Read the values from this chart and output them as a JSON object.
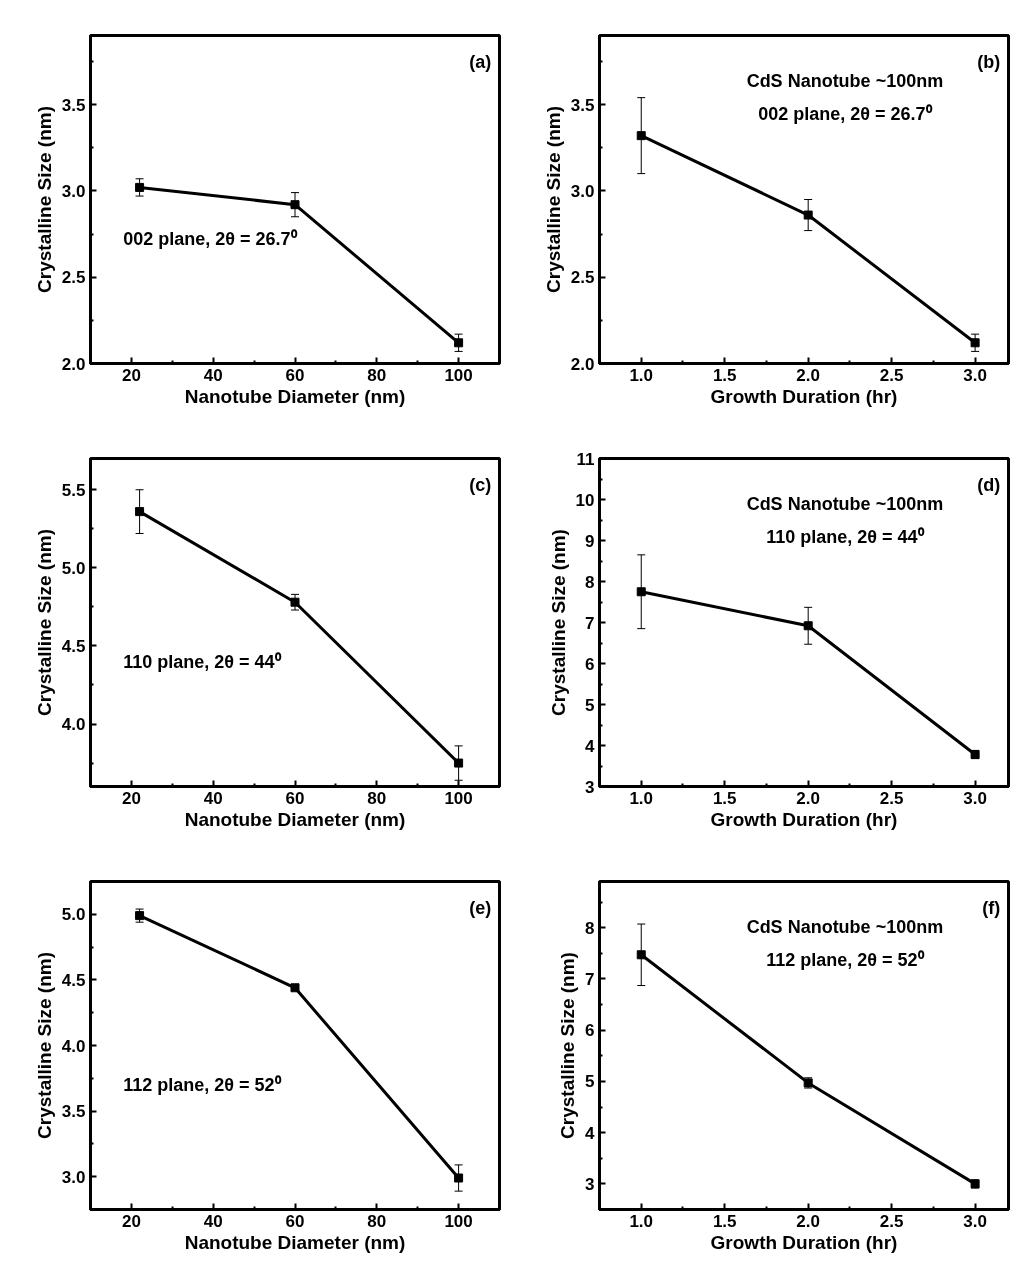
{
  "chart_data": [
    {
      "type": "line",
      "xlabel": "Nanotube Diameter (nm)",
      "ylabel": "Crystalline Size (nm)",
      "x": [
        22,
        60,
        100
      ],
      "xlim": [
        10,
        110
      ],
      "xticks": [
        20,
        40,
        60,
        80,
        100
      ],
      "ylim": [
        2.0,
        3.9
      ],
      "yticks": [
        {
          "value": 2,
          "label": "2.0"
        },
        {
          "value": 2.5,
          "label": "2.5"
        },
        {
          "value": 3,
          "label": "3.0"
        },
        {
          "value": 3.5,
          "label": "3.5"
        }
      ],
      "marker": "square",
      "line_style": "solid",
      "grid": false,
      "annotations": [
        "(a)",
        "002 plane, 2θ = 26.7⁰"
      ],
      "series": [
        {
          "color": "#000000",
          "values": [
            3.02,
            2.92,
            2.12
          ],
          "errors": [
            0.05,
            0.07,
            0.05
          ]
        }
      ]
    },
    {
      "type": "line",
      "xlabel": "Growth Duration (hr)",
      "ylabel": "Crystalline Size (nm)",
      "x": [
        1.0,
        2.0,
        3.0
      ],
      "xlim": [
        0.75,
        3.2
      ],
      "xticks": [
        {
          "value": 1,
          "label": "1.0"
        },
        {
          "value": 1.5,
          "label": "1.5"
        },
        {
          "value": 2,
          "label": "2.0"
        },
        {
          "value": 2.5,
          "label": "2.5"
        },
        {
          "value": 3,
          "label": "3.0"
        }
      ],
      "ylim": [
        2.0,
        3.9
      ],
      "yticks": [
        {
          "value": 2,
          "label": "2.0"
        },
        {
          "value": 2.5,
          "label": "2.5"
        },
        {
          "value": 3,
          "label": "3.0"
        },
        {
          "value": 3.5,
          "label": "3.5"
        }
      ],
      "marker": "square",
      "line_style": "solid",
      "grid": false,
      "annotations": [
        "(b)",
        "CdS Nanotube ~100nm",
        "002 plane, 2θ = 26.7⁰"
      ],
      "series": [
        {
          "color": "#000000",
          "values": [
            3.32,
            2.86,
            2.12
          ],
          "errors": [
            0.22,
            0.09,
            0.05
          ]
        }
      ]
    },
    {
      "type": "line",
      "xlabel": "Nanotube Diameter (nm)",
      "ylabel": "Crystalline Size (nm)",
      "x": [
        22,
        60,
        100
      ],
      "xlim": [
        10,
        110
      ],
      "xticks": [
        20,
        40,
        60,
        80,
        100
      ],
      "ylim": [
        3.6,
        5.7
      ],
      "yticks": [
        {
          "value": 4,
          "label": "4.0"
        },
        {
          "value": 4.5,
          "label": "4.5"
        },
        {
          "value": 5,
          "label": "5.0"
        },
        {
          "value": 5.5,
          "label": "5.5"
        }
      ],
      "marker": "square",
      "line_style": "solid",
      "grid": false,
      "annotations": [
        "(c)",
        "110 plane, 2θ = 44⁰"
      ],
      "series": [
        {
          "color": "#000000",
          "values": [
            5.36,
            4.78,
            3.75
          ],
          "errors": [
            0.14,
            0.05,
            0.11
          ]
        }
      ]
    },
    {
      "type": "line",
      "xlabel": "Growth Duration (hr)",
      "ylabel": "Crystalline Size (nm)",
      "x": [
        1.0,
        2.0,
        3.0
      ],
      "xlim": [
        0.75,
        3.2
      ],
      "xticks": [
        {
          "value": 1,
          "label": "1.0"
        },
        {
          "value": 1.5,
          "label": "1.5"
        },
        {
          "value": 2,
          "label": "2.0"
        },
        {
          "value": 2.5,
          "label": "2.5"
        },
        {
          "value": 3,
          "label": "3.0"
        }
      ],
      "ylim": [
        3,
        11
      ],
      "yticks": [
        3,
        4,
        5,
        6,
        7,
        8,
        9,
        10,
        11
      ],
      "marker": "square",
      "line_style": "solid",
      "grid": false,
      "annotations": [
        "(d)",
        "CdS Nanotube ~100nm",
        "110 plane, 2θ = 44⁰"
      ],
      "series": [
        {
          "color": "#000000",
          "values": [
            7.75,
            6.92,
            3.78
          ],
          "errors": [
            0.9,
            0.45,
            0.1
          ]
        }
      ]
    },
    {
      "type": "line",
      "xlabel": "Nanotube Diameter (nm)",
      "ylabel": "Crystalline Size (nm)",
      "x": [
        22,
        60,
        100
      ],
      "xlim": [
        10,
        110
      ],
      "xticks": [
        20,
        40,
        60,
        80,
        100
      ],
      "ylim": [
        2.75,
        5.25
      ],
      "yticks": [
        {
          "value": 3,
          "label": "3.0"
        },
        {
          "value": 3.5,
          "label": "3.5"
        },
        {
          "value": 4,
          "label": "4.0"
        },
        {
          "value": 4.5,
          "label": "4.5"
        },
        {
          "value": 5,
          "label": "5.0"
        }
      ],
      "marker": "square",
      "line_style": "solid",
      "grid": false,
      "annotations": [
        "(e)",
        "112  plane, 2θ = 52⁰"
      ],
      "series": [
        {
          "color": "#000000",
          "values": [
            4.99,
            4.44,
            2.99
          ],
          "errors": [
            0.05,
            0.02,
            0.1
          ]
        }
      ]
    },
    {
      "type": "line",
      "xlabel": "Growth Duration (hr)",
      "ylabel": "Crystalline Size (nm)",
      "x": [
        1.0,
        2.0,
        3.0
      ],
      "xlim": [
        0.75,
        3.2
      ],
      "xticks": [
        {
          "value": 1,
          "label": "1.0"
        },
        {
          "value": 1.5,
          "label": "1.5"
        },
        {
          "value": 2,
          "label": "2.0"
        },
        {
          "value": 2.5,
          "label": "2.5"
        },
        {
          "value": 3,
          "label": "3.0"
        }
      ],
      "ylim": [
        2.5,
        8.9
      ],
      "yticks": [
        3,
        4,
        5,
        6,
        7,
        8
      ],
      "marker": "square",
      "line_style": "solid",
      "grid": false,
      "annotations": [
        "(f)",
        "CdS Nanotube ~100nm",
        "112 plane, 2θ = 52⁰"
      ],
      "series": [
        {
          "color": "#000000",
          "values": [
            7.47,
            4.97,
            3.0
          ],
          "errors": [
            0.6,
            0.1,
            0.08
          ]
        }
      ]
    }
  ]
}
